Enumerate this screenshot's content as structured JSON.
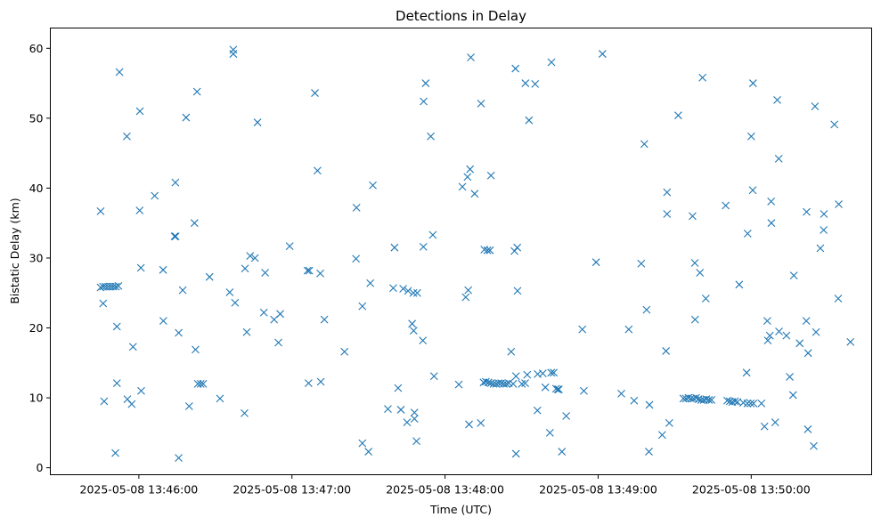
{
  "chart_data": {
    "type": "scatter",
    "title": "Detections in Delay",
    "xlabel": "Time (UTC)",
    "ylabel": "Bistatic Delay (km)",
    "x_ticks": [
      {
        "t": 0,
        "label": "2025-05-08 13:46:00"
      },
      {
        "t": 60,
        "label": "2025-05-08 13:47:00"
      },
      {
        "t": 120,
        "label": "2025-05-08 13:48:00"
      },
      {
        "t": 180,
        "label": "2025-05-08 13:49:00"
      },
      {
        "t": 240,
        "label": "2025-05-08 13:50:00"
      }
    ],
    "y_ticks": [
      0,
      10,
      20,
      30,
      40,
      50,
      60
    ],
    "xlim": [
      -34.7,
      287.2
    ],
    "ylim": [
      -1.0,
      62.9
    ],
    "marker": "x",
    "color": "#1f77b4",
    "grid": false,
    "points": [
      [
        -15.0,
        36.7
      ],
      [
        -15.0,
        25.8
      ],
      [
        -14.0,
        25.9
      ],
      [
        -13.0,
        25.9
      ],
      [
        -12.0,
        25.9
      ],
      [
        -11.0,
        25.9
      ],
      [
        -10.0,
        25.9
      ],
      [
        -9.0,
        25.9
      ],
      [
        -8.0,
        26.0
      ],
      [
        -14.0,
        23.5
      ],
      [
        -13.6,
        9.5
      ],
      [
        -9.2,
        2.1
      ],
      [
        -8.6,
        12.1
      ],
      [
        -8.6,
        20.2
      ],
      [
        -7.6,
        56.6
      ],
      [
        -4.7,
        47.4
      ],
      [
        -4.5,
        9.8
      ],
      [
        -2.8,
        9.1
      ],
      [
        -2.3,
        17.3
      ],
      [
        0.3,
        36.8
      ],
      [
        0.4,
        51.0
      ],
      [
        0.8,
        28.6
      ],
      [
        0.9,
        11.0
      ],
      [
        6.2,
        38.9
      ],
      [
        9.5,
        28.3
      ],
      [
        9.6,
        21.0
      ],
      [
        14.0,
        33.1
      ],
      [
        14.4,
        33.1
      ],
      [
        14.3,
        40.8
      ],
      [
        15.6,
        19.3
      ],
      [
        15.6,
        1.4
      ],
      [
        17.2,
        25.4
      ],
      [
        18.5,
        50.1
      ],
      [
        19.7,
        8.8
      ],
      [
        21.8,
        35.0
      ],
      [
        22.2,
        16.9
      ],
      [
        22.8,
        53.8
      ],
      [
        23.1,
        12.0
      ],
      [
        24.2,
        12.0
      ],
      [
        25.2,
        12.0
      ],
      [
        27.7,
        27.3
      ],
      [
        31.8,
        9.9
      ],
      [
        35.6,
        25.1
      ],
      [
        37.0,
        59.8
      ],
      [
        37.0,
        59.2
      ],
      [
        37.7,
        23.6
      ],
      [
        41.6,
        28.5
      ],
      [
        41.4,
        7.8
      ],
      [
        42.3,
        19.4
      ],
      [
        43.6,
        30.3
      ],
      [
        45.5,
        30.0
      ],
      [
        46.5,
        49.4
      ],
      [
        49.0,
        22.2
      ],
      [
        49.5,
        27.9
      ],
      [
        53.0,
        21.2
      ],
      [
        54.7,
        17.9
      ],
      [
        55.4,
        22.0
      ],
      [
        59.1,
        31.7
      ],
      [
        66.1,
        28.2
      ],
      [
        66.5,
        12.1
      ],
      [
        66.8,
        28.2
      ],
      [
        69.0,
        53.6
      ],
      [
        70.0,
        42.5
      ],
      [
        71.1,
        27.8
      ],
      [
        71.3,
        12.3
      ],
      [
        72.7,
        21.2
      ],
      [
        80.6,
        16.6
      ],
      [
        85.3,
        37.2
      ],
      [
        85.1,
        29.9
      ],
      [
        87.6,
        3.5
      ],
      [
        87.6,
        23.1
      ],
      [
        90.0,
        2.3
      ],
      [
        90.7,
        26.4
      ],
      [
        91.7,
        40.4
      ],
      [
        97.6,
        8.4
      ],
      [
        99.7,
        25.7
      ],
      [
        100.2,
        31.5
      ],
      [
        101.6,
        11.4
      ],
      [
        102.7,
        8.3
      ],
      [
        103.6,
        25.6
      ],
      [
        105.1,
        6.5
      ],
      [
        105.5,
        25.3
      ],
      [
        107.6,
        25.0
      ],
      [
        107.1,
        20.6
      ],
      [
        107.7,
        19.6
      ],
      [
        108.0,
        7.9
      ],
      [
        108.0,
        7.0
      ],
      [
        108.8,
        3.8
      ],
      [
        109.1,
        25.0
      ],
      [
        111.3,
        18.2
      ],
      [
        111.5,
        31.6
      ],
      [
        111.6,
        52.4
      ],
      [
        112.4,
        55.0
      ],
      [
        114.4,
        47.4
      ],
      [
        115.2,
        33.3
      ],
      [
        115.7,
        13.1
      ],
      [
        125.4,
        11.9
      ],
      [
        126.8,
        40.2
      ],
      [
        128.1,
        24.4
      ],
      [
        128.8,
        41.6
      ],
      [
        129.1,
        25.4
      ],
      [
        129.4,
        6.2
      ],
      [
        129.8,
        42.7
      ],
      [
        130.1,
        58.7
      ],
      [
        131.6,
        39.2
      ],
      [
        134.1,
        52.1
      ],
      [
        134.0,
        6.4
      ],
      [
        135.4,
        31.2
      ],
      [
        135.1,
        12.2
      ],
      [
        136.0,
        12.3
      ],
      [
        137.0,
        12.2
      ],
      [
        138.0,
        12.1
      ],
      [
        139.0,
        12.0
      ],
      [
        140.0,
        12.0
      ],
      [
        141.0,
        12.1
      ],
      [
        142.0,
        12.1
      ],
      [
        143.0,
        12.0
      ],
      [
        144.0,
        12.0
      ],
      [
        145.0,
        12.1
      ],
      [
        136.6,
        31.1
      ],
      [
        137.6,
        31.1
      ],
      [
        138.0,
        41.8
      ],
      [
        145.9,
        16.6
      ],
      [
        146.7,
        12.0
      ],
      [
        147.2,
        31.0
      ],
      [
        147.6,
        57.1
      ],
      [
        147.8,
        2.0
      ],
      [
        147.8,
        13.1
      ],
      [
        148.4,
        25.3
      ],
      [
        148.3,
        31.5
      ],
      [
        150.1,
        12.0
      ],
      [
        151.4,
        12.1
      ],
      [
        151.5,
        55.0
      ],
      [
        152.2,
        13.3
      ],
      [
        152.9,
        49.7
      ],
      [
        155.3,
        54.9
      ],
      [
        156.2,
        8.2
      ],
      [
        156.3,
        13.4
      ],
      [
        158.3,
        13.5
      ],
      [
        159.3,
        11.5
      ],
      [
        161.1,
        5.0
      ],
      [
        161.7,
        58.0
      ],
      [
        161.6,
        13.6
      ],
      [
        162.6,
        13.6
      ],
      [
        163.5,
        11.3
      ],
      [
        164.2,
        11.2
      ],
      [
        164.6,
        11.2
      ],
      [
        165.8,
        2.3
      ],
      [
        167.5,
        7.4
      ],
      [
        173.8,
        19.8
      ],
      [
        174.4,
        11.0
      ],
      [
        179.2,
        29.4
      ],
      [
        181.7,
        59.2
      ],
      [
        192.0,
        19.8
      ],
      [
        189.1,
        10.6
      ],
      [
        194.1,
        9.6
      ],
      [
        196.9,
        29.2
      ],
      [
        198.1,
        46.3
      ],
      [
        199.0,
        22.6
      ],
      [
        200.1,
        9.0
      ],
      [
        199.9,
        2.3
      ],
      [
        205.1,
        4.7
      ],
      [
        206.6,
        16.7
      ],
      [
        207.0,
        39.4
      ],
      [
        207.0,
        36.3
      ],
      [
        207.9,
        6.4
      ],
      [
        211.4,
        50.4
      ],
      [
        213.4,
        9.9
      ],
      [
        214.4,
        9.9
      ],
      [
        215.4,
        10.0
      ],
      [
        216.4,
        9.9
      ],
      [
        217.4,
        9.9
      ],
      [
        218.4,
        10.0
      ],
      [
        219.4,
        9.8
      ],
      [
        220.4,
        9.7
      ],
      [
        221.4,
        9.7
      ],
      [
        222.4,
        9.8
      ],
      [
        223.4,
        9.7
      ],
      [
        224.4,
        9.7
      ],
      [
        217.0,
        36.0
      ],
      [
        217.9,
        29.3
      ],
      [
        218.0,
        21.2
      ],
      [
        219.9,
        27.9
      ],
      [
        220.9,
        55.8
      ],
      [
        222.2,
        24.2
      ],
      [
        230.0,
        37.5
      ],
      [
        230.6,
        9.6
      ],
      [
        231.6,
        9.5
      ],
      [
        232.6,
        9.4
      ],
      [
        233.6,
        9.5
      ],
      [
        234.6,
        9.4
      ],
      [
        235.3,
        26.2
      ],
      [
        236.9,
        9.3
      ],
      [
        238.2,
        13.6
      ],
      [
        238.6,
        33.5
      ],
      [
        238.5,
        9.2
      ],
      [
        239.8,
        9.2
      ],
      [
        240.6,
        39.7
      ],
      [
        240.0,
        47.4
      ],
      [
        240.7,
        55.0
      ],
      [
        240.9,
        9.2
      ],
      [
        244.0,
        9.2
      ],
      [
        245.2,
        5.9
      ],
      [
        246.3,
        21.0
      ],
      [
        246.5,
        18.2
      ],
      [
        247.3,
        18.9
      ],
      [
        247.8,
        38.1
      ],
      [
        247.9,
        35.0
      ],
      [
        249.4,
        6.5
      ],
      [
        250.2,
        52.6
      ],
      [
        250.8,
        44.2
      ],
      [
        250.9,
        19.5
      ],
      [
        253.8,
        18.9
      ],
      [
        255.1,
        13.0
      ],
      [
        256.4,
        10.4
      ],
      [
        256.7,
        27.5
      ],
      [
        259.0,
        17.8
      ],
      [
        261.6,
        21.0
      ],
      [
        261.7,
        36.6
      ],
      [
        262.2,
        5.5
      ],
      [
        262.3,
        16.4
      ],
      [
        264.5,
        3.1
      ],
      [
        265.0,
        51.7
      ],
      [
        265.4,
        19.4
      ],
      [
        267.1,
        31.4
      ],
      [
        268.5,
        36.3
      ],
      [
        268.4,
        34.0
      ],
      [
        272.6,
        49.1
      ],
      [
        274.1,
        24.2
      ],
      [
        274.3,
        37.7
      ],
      [
        278.9,
        18.0
      ]
    ]
  }
}
